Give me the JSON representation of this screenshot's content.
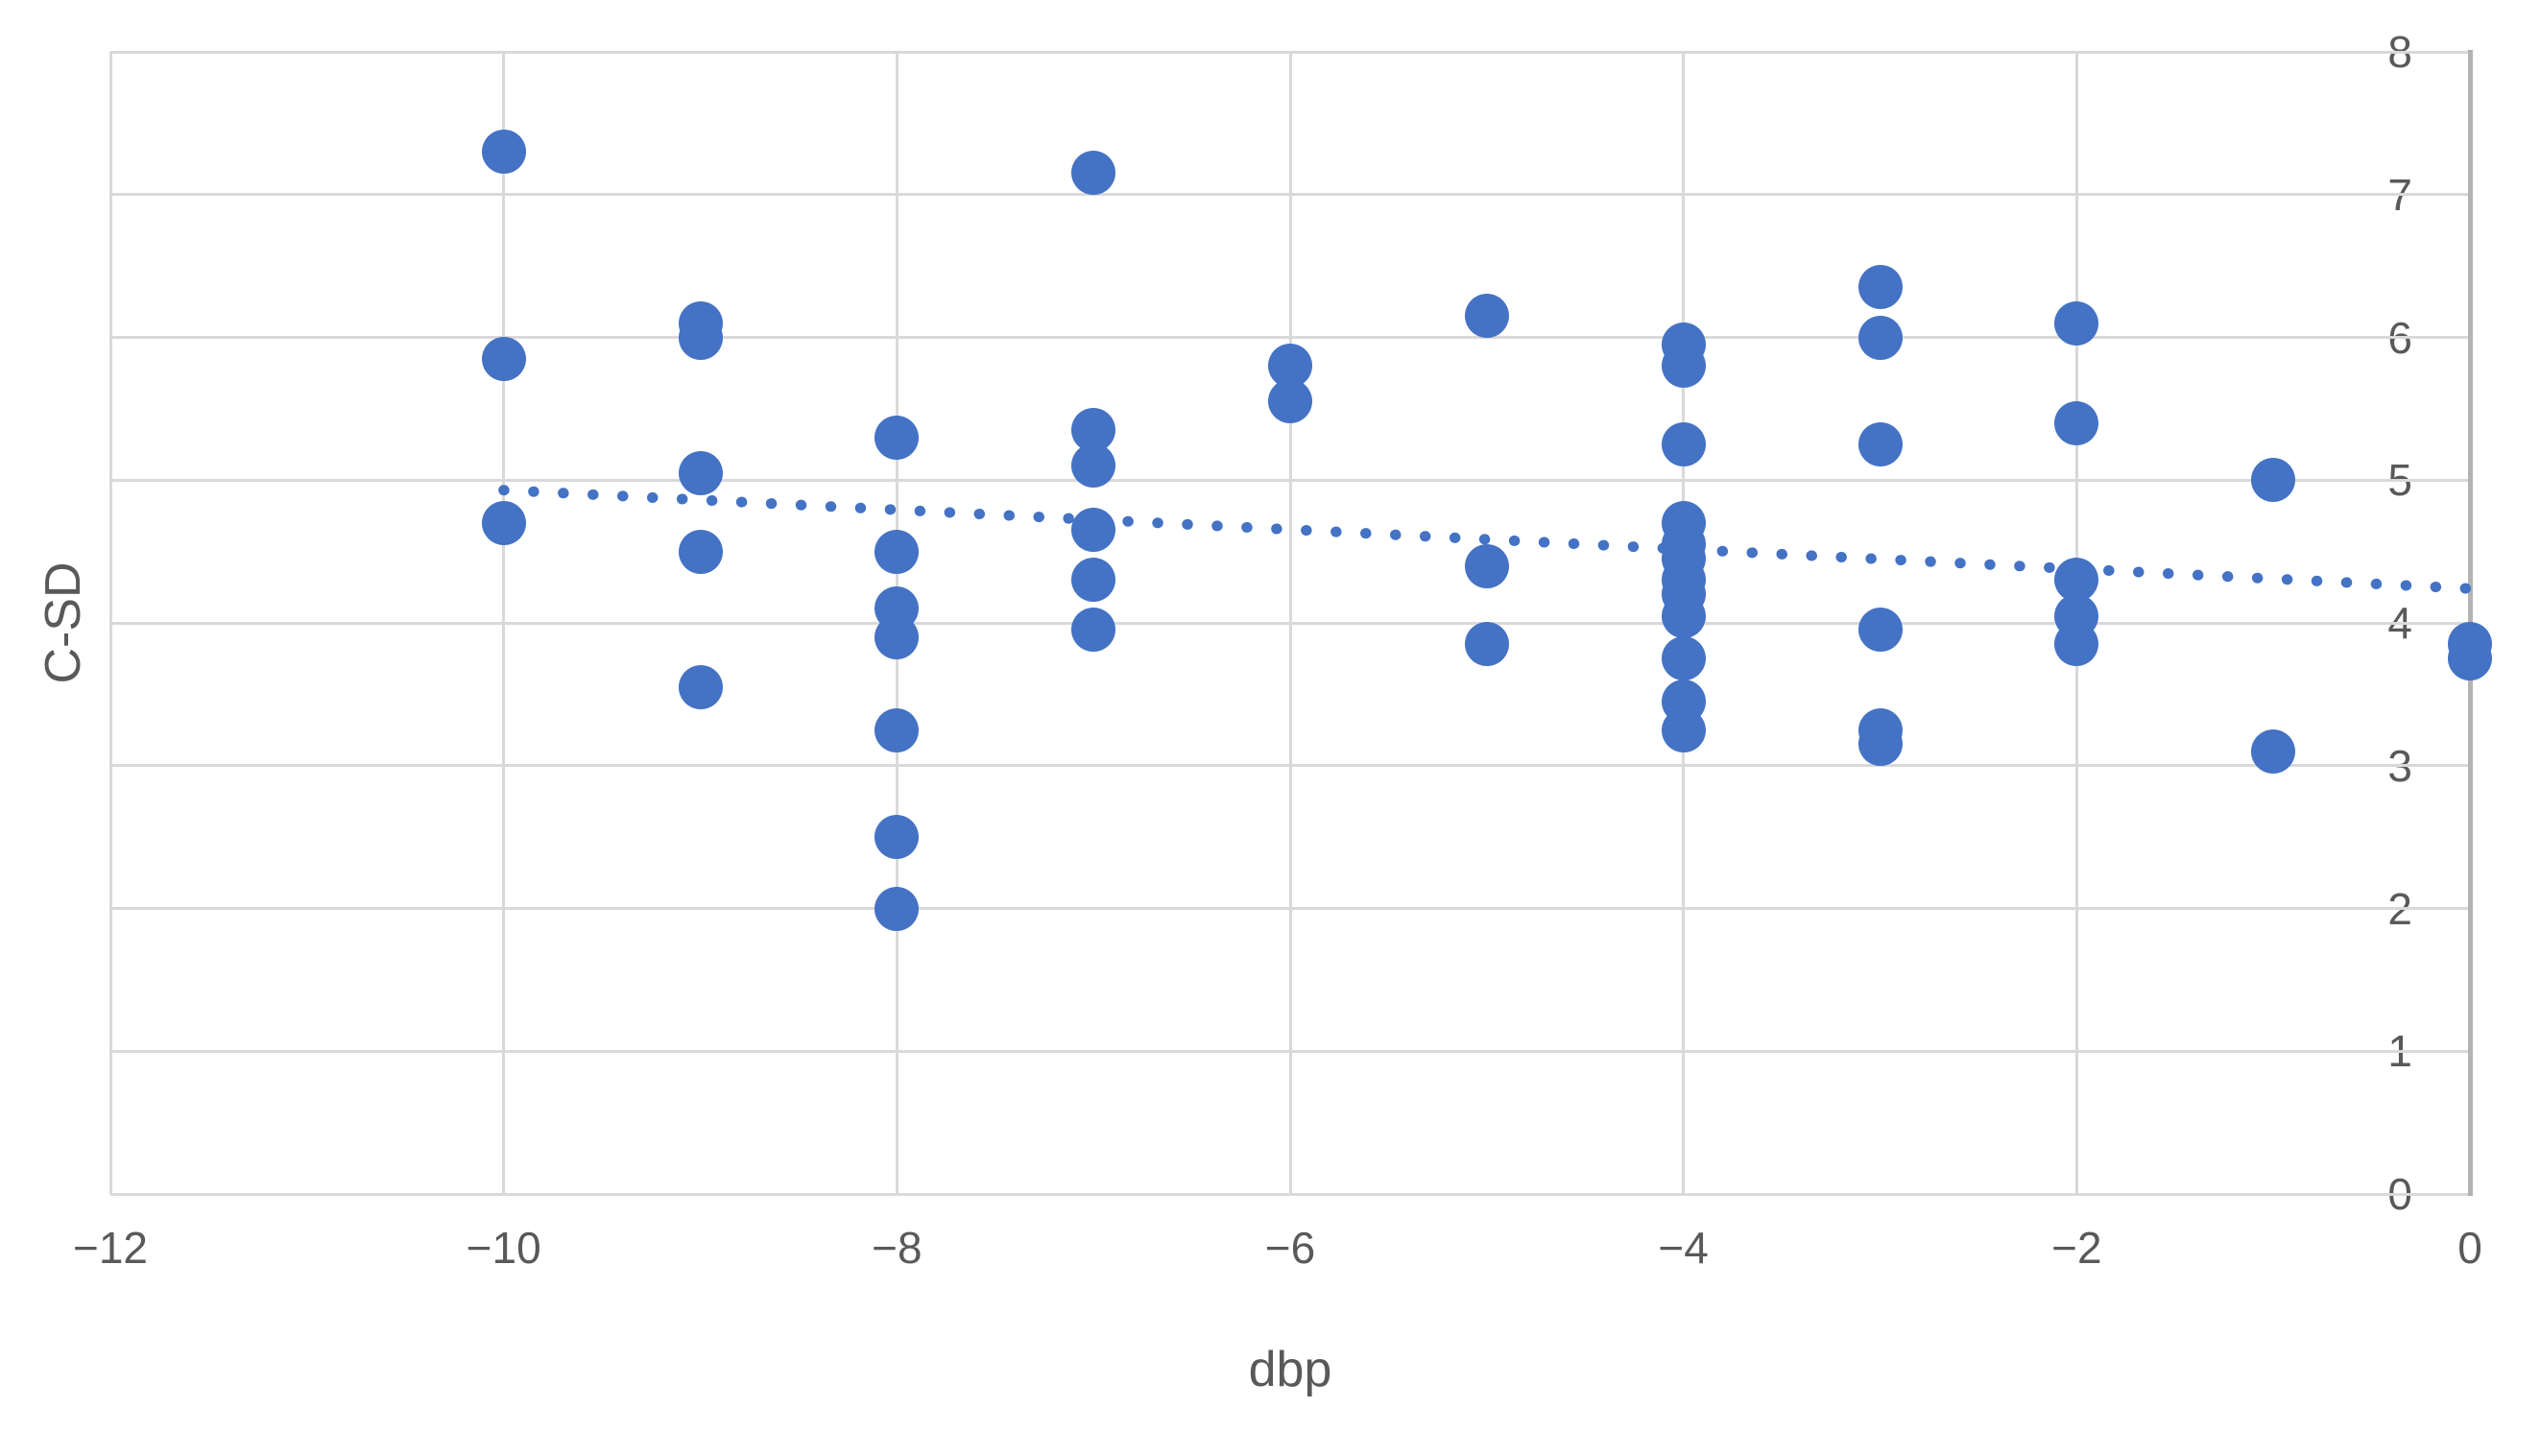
{
  "chart_data": {
    "type": "scatter",
    "title": "",
    "xlabel": "dbp",
    "ylabel": "C-SD",
    "xlim": [
      -12,
      0
    ],
    "ylim": [
      0,
      8
    ],
    "x_ticks": [
      -12,
      -10,
      -8,
      -6,
      -4,
      -2,
      0
    ],
    "x_tick_labels": [
      "−12",
      "−10",
      "−8",
      "−6",
      "−4",
      "−2",
      "0"
    ],
    "y_ticks": [
      0,
      1,
      2,
      3,
      4,
      5,
      6,
      7,
      8
    ],
    "y_tick_labels": [
      "0",
      "1",
      "2",
      "3",
      "4",
      "5",
      "6",
      "7",
      "8"
    ],
    "y_axis_side": "right",
    "grid": true,
    "legend": "none",
    "points": [
      [
        -10,
        7.3
      ],
      [
        -10,
        5.85
      ],
      [
        -10,
        4.7
      ],
      [
        -9,
        6.1
      ],
      [
        -9,
        6.0
      ],
      [
        -9,
        5.05
      ],
      [
        -9,
        4.5
      ],
      [
        -9,
        3.55
      ],
      [
        -8,
        5.3
      ],
      [
        -8,
        4.5
      ],
      [
        -8,
        4.1
      ],
      [
        -8,
        3.9
      ],
      [
        -8,
        3.25
      ],
      [
        -8,
        2.5
      ],
      [
        -8,
        2.0
      ],
      [
        -7,
        7.15
      ],
      [
        -7,
        5.35
      ],
      [
        -7,
        5.1
      ],
      [
        -7,
        4.65
      ],
      [
        -7,
        4.3
      ],
      [
        -7,
        3.95
      ],
      [
        -6,
        5.8
      ],
      [
        -6,
        5.55
      ],
      [
        -5,
        6.15
      ],
      [
        -5,
        4.4
      ],
      [
        -5,
        3.85
      ],
      [
        -4,
        5.95
      ],
      [
        -4,
        5.8
      ],
      [
        -4,
        5.25
      ],
      [
        -4,
        4.7
      ],
      [
        -4,
        4.55
      ],
      [
        -4,
        4.45
      ],
      [
        -4,
        4.3
      ],
      [
        -4,
        4.2
      ],
      [
        -4,
        4.05
      ],
      [
        -4,
        3.75
      ],
      [
        -4,
        3.45
      ],
      [
        -4,
        3.25
      ],
      [
        -3,
        6.35
      ],
      [
        -3,
        6.0
      ],
      [
        -3,
        5.25
      ],
      [
        -3,
        3.95
      ],
      [
        -3,
        3.25
      ],
      [
        -3,
        3.15
      ],
      [
        -2,
        6.1
      ],
      [
        -2,
        5.4
      ],
      [
        -2,
        4.3
      ],
      [
        -2,
        4.05
      ],
      [
        -2,
        3.85
      ],
      [
        -1,
        5.0
      ],
      [
        -1,
        3.1
      ],
      [
        0,
        3.85
      ],
      [
        0,
        3.75
      ]
    ],
    "trendline": {
      "style": "dotted",
      "x1": -10,
      "y1": 4.93,
      "x2": 0,
      "y2": 4.24
    },
    "colors": {
      "marker": "#4472C4",
      "trendline": "#4472C4",
      "gridline": "#D9D9D9",
      "axis_line": "#B3B3B3",
      "text": "#595959"
    }
  }
}
